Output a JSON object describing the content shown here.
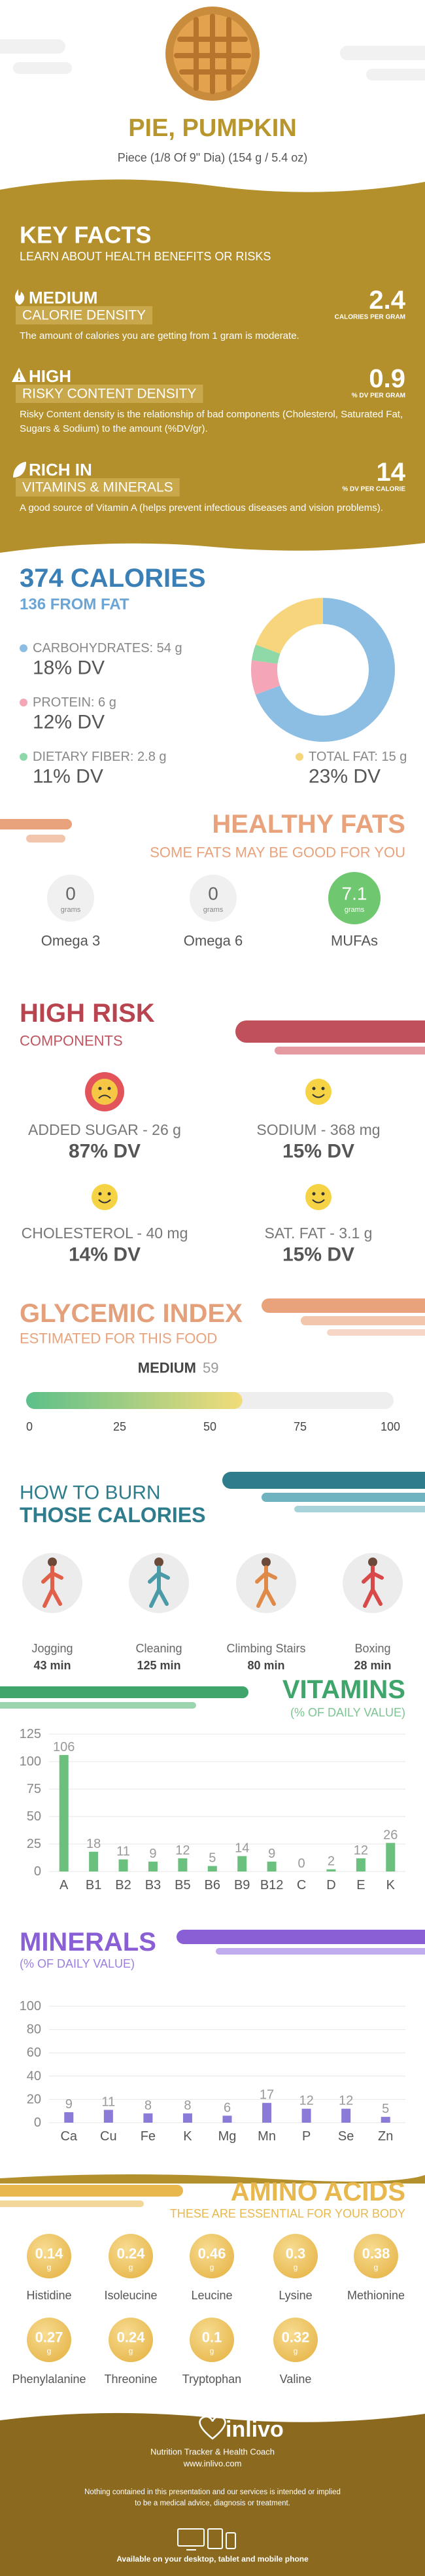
{
  "header": {
    "title": "PIE, PUMPKIN",
    "subtitle": "Piece (1/8 Of 9\" Dia) (154 g / 5.4 oz)"
  },
  "key_facts": {
    "title": "KEY FACTS",
    "subtitle": "LEARN ABOUT HEALTH BENEFITS OR RISKS",
    "items": [
      {
        "level": "MEDIUM",
        "name": "CALORIE DENSITY",
        "value": 2.4,
        "unit": "CALORIES PER GRAM",
        "description": "The amount of calories you are getting from 1 gram is moderate."
      },
      {
        "level": "HIGH",
        "name": "RISKY CONTENT DENSITY",
        "value": 0.9,
        "unit": "% DV PER GRAM",
        "description": "Risky Content density is the relationship of bad components (Cholesterol, Saturated Fat, Sugars & Sodium) to the amount (%DV/gr)."
      },
      {
        "level": "RICH  IN",
        "name": "VITAMINS & MINERALS",
        "value": 14,
        "unit": "% DV PER CALORIE",
        "description": "A good source of Vitamin A (helps prevent infectious diseases and vision problems)."
      }
    ]
  },
  "calories": {
    "title": "374 CALORIES",
    "subtitle": "136 FROM FAT",
    "nutrients": [
      {
        "label": "CARBOHYDRATES: 54 g",
        "grams": 54,
        "dv": "18% DV",
        "color": "#8cbde3"
      },
      {
        "label": "PROTEIN: 6 g",
        "grams": 6,
        "dv": "12% DV",
        "color": "#f4a6b6"
      },
      {
        "label": "DIETARY FIBER: 2.8 g",
        "grams": 2.8,
        "dv": "11% DV",
        "color": "#8fd8a8"
      },
      {
        "label": "TOTAL FAT: 15 g",
        "grams": 15,
        "dv": "23% DV",
        "color": "#f7d57d"
      }
    ]
  },
  "healthy_fats": {
    "title": "HEALTHY FATS",
    "subtitle": "SOME FATS MAY BE GOOD FOR YOU",
    "items": [
      {
        "name": "Omega 3",
        "value": 0,
        "unit": "grams"
      },
      {
        "name": "Omega 6",
        "value": 0,
        "unit": "grams"
      },
      {
        "name": "MUFAs",
        "value": 7.1,
        "unit": "grams"
      }
    ]
  },
  "high_risk": {
    "title": "HIGH RISK",
    "subtitle": "COMPONENTS",
    "items": [
      {
        "label": "ADDED SUGAR - 26 g",
        "dv": "87% DV"
      },
      {
        "label": "SODIUM - 368 mg",
        "dv": "15% DV"
      },
      {
        "label": "CHOLESTEROL - 40 mg",
        "dv": "14% DV"
      },
      {
        "label": "SAT. FAT - 3.1 g",
        "dv": "15% DV"
      }
    ]
  },
  "glycemic_index": {
    "title": "GLYCEMIC INDEX",
    "subtitle": "ESTIMATED FOR THIS FOOD",
    "level": "MEDIUM",
    "value": 59,
    "xlim": [
      0,
      100
    ],
    "xticks": [
      0,
      25,
      50,
      75,
      100
    ]
  },
  "burn": {
    "title": "HOW TO BURN",
    "subtitle": "THOSE CALORIES",
    "activities": [
      {
        "name": "Jogging",
        "time": "43 min"
      },
      {
        "name": "Cleaning",
        "time": "125 min"
      },
      {
        "name": "Climbing Stairs",
        "time": "80 min"
      },
      {
        "name": "Boxing",
        "time": "28 min"
      }
    ]
  },
  "vitamins": {
    "title": "VITAMINS",
    "subtitle": "(% OF DAILY VALUE)",
    "chart": {
      "type": "bar",
      "categories": [
        "A",
        "B1",
        "B2",
        "B3",
        "B5",
        "B6",
        "B9",
        "B12",
        "C",
        "D",
        "E",
        "K"
      ],
      "values": [
        106,
        18,
        11,
        9,
        12,
        5,
        14,
        9,
        0,
        2,
        12,
        26
      ],
      "color": "#6cc07e",
      "ylim": [
        0,
        125
      ],
      "yticks": [
        0,
        25,
        50,
        75,
        100,
        125
      ],
      "grid": true
    }
  },
  "minerals": {
    "title": "MINERALS",
    "subtitle": "(% OF DAILY VALUE)",
    "chart": {
      "type": "bar",
      "categories": [
        "Ca",
        "Cu",
        "Fe",
        "K",
        "Mg",
        "Mn",
        "P",
        "Se",
        "Zn"
      ],
      "values": [
        9,
        11,
        8,
        8,
        6,
        17,
        12,
        12,
        5
      ],
      "color": "#8b7ad8",
      "ylim": [
        0,
        100
      ],
      "yticks": [
        0,
        20,
        40,
        60,
        80,
        100
      ],
      "grid": true
    }
  },
  "amino_acids": {
    "title": "AMINO ACIDS",
    "subtitle": "THESE ARE ESSENTIAL FOR YOUR BODY",
    "items": [
      {
        "name": "Histidine",
        "value": 0.14,
        "unit": "g"
      },
      {
        "name": "Isoleucine",
        "value": 0.24,
        "unit": "g"
      },
      {
        "name": "Leucine",
        "value": 0.46,
        "unit": "g"
      },
      {
        "name": "Lysine",
        "value": 0.3,
        "unit": "g"
      },
      {
        "name": "Methionine",
        "value": 0.38,
        "unit": "g"
      },
      {
        "name": "Phenylalanine",
        "value": 0.27,
        "unit": "g"
      },
      {
        "name": "Threonine",
        "value": 0.24,
        "unit": "g"
      },
      {
        "name": "Tryptophan",
        "value": 0.1,
        "unit": "g"
      },
      {
        "name": "Valine",
        "value": 0.32,
        "unit": "g"
      }
    ]
  },
  "footer": {
    "brand": "inlivo",
    "tagline": "Nutrition Tracker & Health Coach",
    "url": "www.inlivo.com",
    "disclaimer": [
      "Nothing contained in this presentation and our services is intended or implied",
      "to be a medical advice, diagnosis or treatment."
    ],
    "availability": "Available on your desktop, tablet and mobile phone"
  }
}
